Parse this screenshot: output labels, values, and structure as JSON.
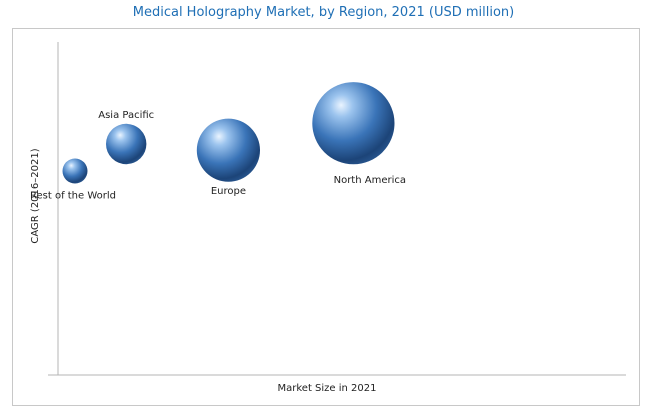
{
  "chart_data": {
    "type": "scatter",
    "title": "Medical Holography Market, by Region, 2021 (USD million)",
    "xlabel": "Market Size in 2021",
    "ylabel": "CAGR (2016–2021)",
    "grid": false,
    "series": [
      {
        "points": [
          {
            "label": "Rest of the World",
            "x": 0.3,
            "y": 0.38,
            "size": 0.25
          },
          {
            "label": "Asia Pacific",
            "x": 1.2,
            "y": 0.51,
            "size": 0.65
          },
          {
            "label": "Europe",
            "x": 3.0,
            "y": 0.48,
            "size": 1.6
          },
          {
            "label": "North America",
            "x": 5.2,
            "y": 0.61,
            "size": 2.7
          }
        ]
      }
    ],
    "xlim": [
      0,
      10
    ],
    "ylim": [
      -0.6,
      1.0
    ],
    "bubble_color": "#3a74b8"
  }
}
